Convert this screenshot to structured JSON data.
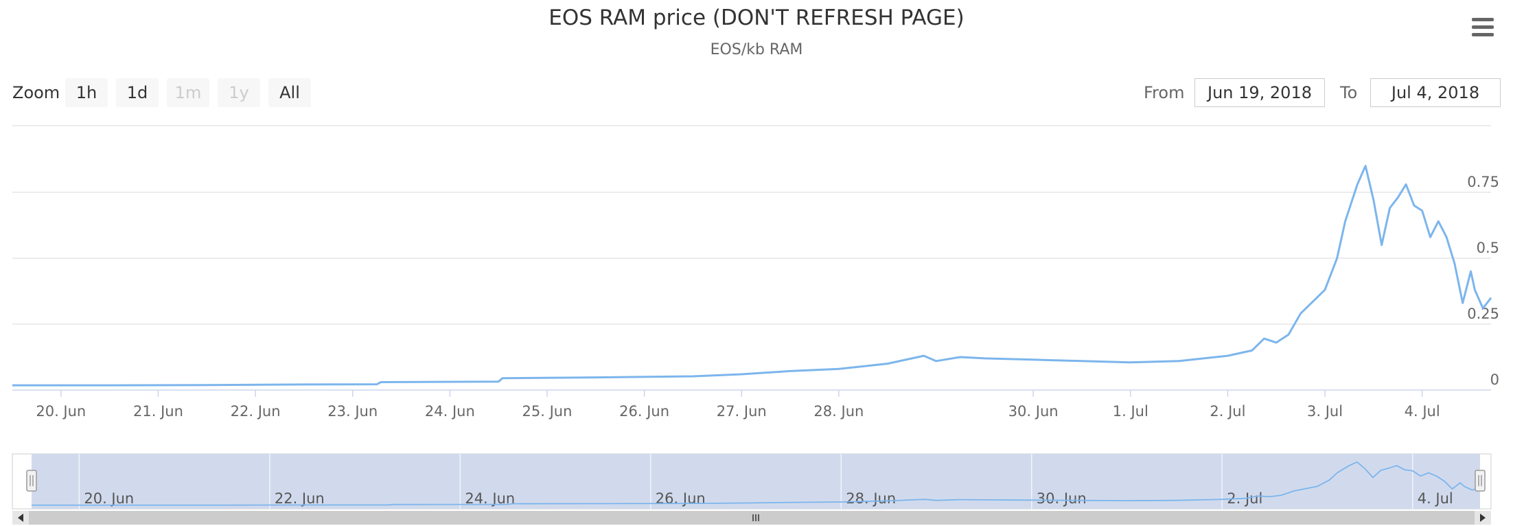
{
  "header": {
    "title": "EOS RAM price (DON'T REFRESH PAGE)",
    "subtitle": "EOS/kb RAM"
  },
  "icons": {
    "menu": "hamburger-menu-icon",
    "scroll_left": "triangle-left-icon",
    "scroll_right": "triangle-right-icon",
    "handle": "grip-icon"
  },
  "range_selector": {
    "zoom_label": "Zoom",
    "buttons": [
      {
        "label": "1h",
        "enabled": true
      },
      {
        "label": "1d",
        "enabled": true
      },
      {
        "label": "1m",
        "enabled": false
      },
      {
        "label": "1y",
        "enabled": false
      },
      {
        "label": "All",
        "enabled": true
      }
    ],
    "from_label": "From",
    "from_value": "Jun 19, 2018",
    "to_label": "To",
    "to_value": "Jul 4, 2018"
  },
  "colors": {
    "series": "#7cb5ec",
    "navigator_mask": "#cfd8ec",
    "gridline": "#e6e6e6",
    "scrollbar": "#cccccc"
  },
  "chart_data": {
    "type": "line",
    "title": "EOS RAM price (DON'T REFRESH PAGE)",
    "subtitle": "EOS/kb RAM",
    "xlabel": "",
    "ylabel": "",
    "x_range": [
      "2018-06-19T12:00",
      "2018-07-04T17:00"
    ],
    "ylim": [
      0,
      0.9
    ],
    "y_ticks": [
      0,
      0.25,
      0.5,
      0.75
    ],
    "y_tick_labels": [
      "0",
      "0.25",
      "0.5",
      "0.75"
    ],
    "x_ticks": [
      {
        "date": "2018-06-20",
        "label": "20. Jun"
      },
      {
        "date": "2018-06-21",
        "label": "21. Jun"
      },
      {
        "date": "2018-06-22",
        "label": "22. Jun"
      },
      {
        "date": "2018-06-23",
        "label": "23. Jun"
      },
      {
        "date": "2018-06-24",
        "label": "24. Jun"
      },
      {
        "date": "2018-06-25",
        "label": "25. Jun"
      },
      {
        "date": "2018-06-26",
        "label": "26. Jun"
      },
      {
        "date": "2018-06-27",
        "label": "27. Jun"
      },
      {
        "date": "2018-06-28",
        "label": "28. Jun"
      },
      {
        "date": "2018-06-30",
        "label": "30. Jun"
      },
      {
        "date": "2018-07-01",
        "label": "1. Jul"
      },
      {
        "date": "2018-07-02",
        "label": "2. Jul"
      },
      {
        "date": "2018-07-03",
        "label": "3. Jul"
      },
      {
        "date": "2018-07-04",
        "label": "4. Jul"
      }
    ],
    "y_axis_side": "right",
    "grid": true,
    "legend": "none",
    "series": [
      {
        "points": [
          [
            "2018-06-19T12:00",
            0.018
          ],
          [
            "2018-06-20T12:00",
            0.018
          ],
          [
            "2018-06-21T12:00",
            0.019
          ],
          [
            "2018-06-22T12:00",
            0.021
          ],
          [
            "2018-06-23T06:00",
            0.022
          ],
          [
            "2018-06-23T07:00",
            0.03
          ],
          [
            "2018-06-24T12:00",
            0.032
          ],
          [
            "2018-06-24T13:00",
            0.045
          ],
          [
            "2018-06-25T12:00",
            0.048
          ],
          [
            "2018-06-26T12:00",
            0.052
          ],
          [
            "2018-06-27T00:00",
            0.06
          ],
          [
            "2018-06-27T12:00",
            0.072
          ],
          [
            "2018-06-28T00:00",
            0.08
          ],
          [
            "2018-06-28T12:00",
            0.1
          ],
          [
            "2018-06-28T21:00",
            0.13
          ],
          [
            "2018-06-29T00:00",
            0.11
          ],
          [
            "2018-06-29T06:00",
            0.125
          ],
          [
            "2018-06-29T12:00",
            0.12
          ],
          [
            "2018-06-30T00:00",
            0.115
          ],
          [
            "2018-06-30T12:00",
            0.11
          ],
          [
            "2018-07-01T00:00",
            0.105
          ],
          [
            "2018-07-01T12:00",
            0.11
          ],
          [
            "2018-07-02T00:00",
            0.13
          ],
          [
            "2018-07-02T06:00",
            0.15
          ],
          [
            "2018-07-02T09:00",
            0.195
          ],
          [
            "2018-07-02T12:00",
            0.18
          ],
          [
            "2018-07-02T15:00",
            0.21
          ],
          [
            "2018-07-02T18:00",
            0.29
          ],
          [
            "2018-07-03T00:00",
            0.38
          ],
          [
            "2018-07-03T03:00",
            0.5
          ],
          [
            "2018-07-03T05:00",
            0.64
          ],
          [
            "2018-07-03T08:00",
            0.78
          ],
          [
            "2018-07-03T10:00",
            0.85
          ],
          [
            "2018-07-03T12:00",
            0.72
          ],
          [
            "2018-07-03T14:00",
            0.55
          ],
          [
            "2018-07-03T16:00",
            0.69
          ],
          [
            "2018-07-03T18:00",
            0.73
          ],
          [
            "2018-07-03T20:00",
            0.78
          ],
          [
            "2018-07-03T22:00",
            0.7
          ],
          [
            "2018-07-04T00:00",
            0.68
          ],
          [
            "2018-07-04T02:00",
            0.58
          ],
          [
            "2018-07-04T04:00",
            0.64
          ],
          [
            "2018-07-04T06:00",
            0.58
          ],
          [
            "2018-07-04T08:00",
            0.48
          ],
          [
            "2018-07-04T10:00",
            0.33
          ],
          [
            "2018-07-04T12:00",
            0.45
          ],
          [
            "2018-07-04T13:00",
            0.38
          ],
          [
            "2018-07-04T15:00",
            0.31
          ],
          [
            "2018-07-04T17:00",
            0.35
          ]
        ]
      }
    ]
  },
  "navigator": {
    "x_ticks": [
      {
        "date": "2018-06-20",
        "label": "20. Jun"
      },
      {
        "date": "2018-06-22",
        "label": "22. Jun"
      },
      {
        "date": "2018-06-24",
        "label": "24. Jun"
      },
      {
        "date": "2018-06-26",
        "label": "26. Jun"
      },
      {
        "date": "2018-06-28",
        "label": "28. Jun"
      },
      {
        "date": "2018-06-30",
        "label": "30. Jun"
      },
      {
        "date": "2018-07-02",
        "label": "2. Jul"
      },
      {
        "date": "2018-07-04",
        "label": "4. Jul"
      }
    ]
  }
}
